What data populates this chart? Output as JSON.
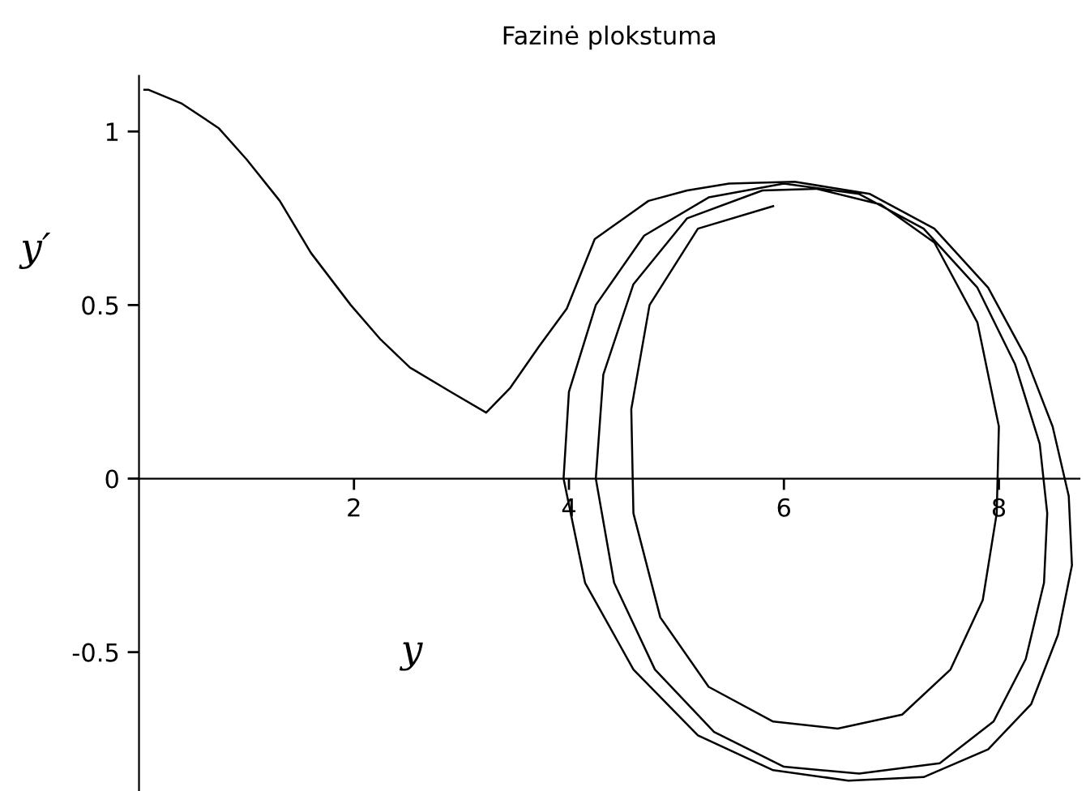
{
  "chart_data": {
    "type": "line",
    "title": "Fazinė plokstuma",
    "xlabel": "y",
    "ylabel": "y′",
    "xlim": [
      0,
      8.75
    ],
    "ylim": [
      -0.9,
      1.16
    ],
    "xticks": [
      2,
      4,
      6,
      8
    ],
    "yticks": [
      -0.5,
      0,
      0.5,
      1
    ],
    "grid": false,
    "series": [
      {
        "color": "#000000",
        "x": [
          0.05,
          0.09,
          0.4,
          0.74,
          1.0,
          1.31,
          1.6,
          1.97,
          2.25,
          2.52,
          2.9,
          3.23,
          3.45,
          3.72,
          3.98,
          4.24,
          4.74,
          5.1,
          5.49,
          6.1,
          6.8,
          7.4,
          7.9,
          8.25,
          8.5,
          8.65,
          8.68,
          8.55,
          8.3,
          7.9,
          7.3,
          6.6,
          5.9,
          5.2,
          4.6,
          4.15,
          3.95,
          4.0,
          4.25,
          4.7,
          5.3,
          6.0,
          6.7,
          7.3,
          7.8,
          8.15,
          8.38,
          8.45,
          8.42,
          8.25,
          7.95,
          7.45,
          6.7,
          6.0,
          5.35,
          4.8,
          4.42,
          4.25,
          4.32,
          4.6,
          5.1,
          5.8,
          6.3,
          6.9,
          7.4,
          7.8,
          8.0,
          7.98,
          7.85,
          7.55,
          7.1,
          6.5,
          5.9,
          5.3,
          4.85,
          4.6,
          4.58,
          4.75,
          5.2,
          5.9
        ],
        "values": [
          1.12,
          1.12,
          1.08,
          1.01,
          0.92,
          0.8,
          0.65,
          0.5,
          0.4,
          0.32,
          0.25,
          0.19,
          0.26,
          0.38,
          0.49,
          0.69,
          0.8,
          0.83,
          0.85,
          0.855,
          0.82,
          0.72,
          0.55,
          0.35,
          0.15,
          -0.05,
          -0.25,
          -0.45,
          -0.65,
          -0.78,
          -0.86,
          -0.87,
          -0.84,
          -0.74,
          -0.55,
          -0.3,
          0.0,
          0.25,
          0.5,
          0.7,
          0.81,
          0.85,
          0.82,
          0.72,
          0.55,
          0.33,
          0.1,
          -0.1,
          -0.3,
          -0.52,
          -0.7,
          -0.82,
          -0.85,
          -0.83,
          -0.73,
          -0.55,
          -0.3,
          0.0,
          0.3,
          0.56,
          0.75,
          0.83,
          0.835,
          0.79,
          0.68,
          0.45,
          0.15,
          -0.1,
          -0.35,
          -0.55,
          -0.68,
          -0.72,
          -0.7,
          -0.6,
          -0.4,
          -0.1,
          0.2,
          0.5,
          0.72,
          0.785
        ]
      }
    ]
  }
}
